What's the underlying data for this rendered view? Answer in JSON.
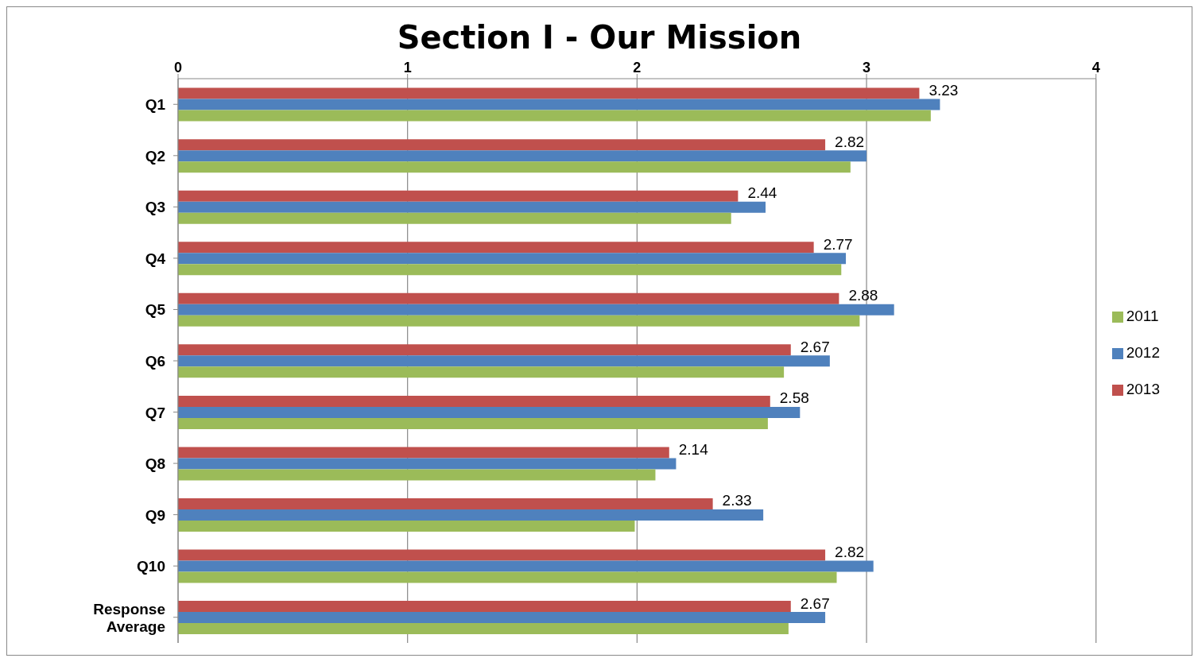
{
  "chart_data": {
    "type": "bar",
    "title": "Section I - Our Mission",
    "orientation": "horizontal",
    "categories": [
      "Q1",
      "Q2",
      "Q3",
      "Q4",
      "Q5",
      "Q6",
      "Q7",
      "Q8",
      "Q9",
      "Q10",
      "Response Average"
    ],
    "series": [
      {
        "name": "2013",
        "color": "#c0504d",
        "values": [
          3.23,
          2.82,
          2.44,
          2.77,
          2.88,
          2.67,
          2.58,
          2.14,
          2.33,
          2.82,
          2.67
        ],
        "value_labels": [
          "3.23",
          "2.82",
          "2.44",
          "2.77",
          "2.88",
          "2.67",
          "2.58",
          "2.14",
          "2.33",
          "2.82",
          "2.67"
        ]
      },
      {
        "name": "2012",
        "color": "#4f81bd",
        "values": [
          3.32,
          3.0,
          2.56,
          2.91,
          3.12,
          2.84,
          2.71,
          2.17,
          2.55,
          3.03,
          2.82
        ]
      },
      {
        "name": "2011",
        "color": "#9bbb59",
        "values": [
          3.28,
          2.93,
          2.41,
          2.89,
          2.97,
          2.64,
          2.57,
          2.08,
          1.99,
          2.87,
          2.66
        ]
      }
    ],
    "xlim": [
      0,
      4
    ],
    "xticks": [
      0,
      1,
      2,
      3,
      4
    ],
    "grid": "x",
    "legend": "right"
  }
}
